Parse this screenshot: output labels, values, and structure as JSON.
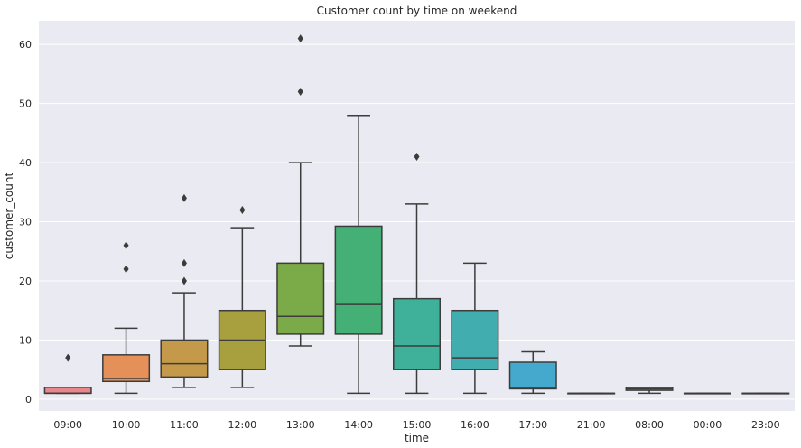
{
  "chart_data": {
    "type": "box",
    "title": "Customer count by time on weekend",
    "xlabel": "time",
    "ylabel": "customer_count",
    "ylim": [
      -2,
      64
    ],
    "yticks": [
      0,
      10,
      20,
      30,
      40,
      50,
      60
    ],
    "grid": true,
    "categories": [
      "09:00",
      "10:00",
      "11:00",
      "12:00",
      "13:00",
      "14:00",
      "15:00",
      "16:00",
      "17:00",
      "21:00",
      "08:00",
      "00:00",
      "23:00"
    ],
    "boxes": [
      {
        "category": "09:00",
        "whisker_low": 1,
        "q1": 1,
        "median": 1,
        "q3": 2,
        "whisker_high": 2,
        "outliers": [
          7
        ],
        "color": "#e8868a"
      },
      {
        "category": "10:00",
        "whisker_low": 1,
        "q1": 3,
        "median": 3.5,
        "q3": 7.5,
        "whisker_high": 12,
        "outliers": [
          22,
          26
        ],
        "color": "#e59058"
      },
      {
        "category": "11:00",
        "whisker_low": 2,
        "q1": 3.75,
        "median": 6,
        "q3": 10,
        "whisker_high": 18,
        "outliers": [
          20,
          23,
          34
        ],
        "color": "#c49a4a"
      },
      {
        "category": "12:00",
        "whisker_low": 2,
        "q1": 5,
        "median": 10,
        "q3": 15,
        "whisker_high": 29,
        "outliers": [
          32
        ],
        "color": "#a8a03f"
      },
      {
        "category": "13:00",
        "whisker_low": 9,
        "q1": 11,
        "median": 14,
        "q3": 23,
        "whisker_high": 40,
        "outliers": [
          52,
          61
        ],
        "color": "#7bab48"
      },
      {
        "category": "14:00",
        "whisker_low": 1,
        "q1": 11,
        "median": 16,
        "q3": 29.25,
        "whisker_high": 48,
        "outliers": [],
        "color": "#45b075"
      },
      {
        "category": "15:00",
        "whisker_low": 1,
        "q1": 5,
        "median": 9,
        "q3": 17,
        "whisker_high": 33,
        "outliers": [
          41
        ],
        "color": "#3fb09a"
      },
      {
        "category": "16:00",
        "whisker_low": 1,
        "q1": 5,
        "median": 7,
        "q3": 15,
        "whisker_high": 23,
        "outliers": [],
        "color": "#41adae"
      },
      {
        "category": "17:00",
        "whisker_low": 1,
        "q1": 1.75,
        "median": 2,
        "q3": 6.25,
        "whisker_high": 8,
        "outliers": [],
        "color": "#44a9cc"
      },
      {
        "category": "21:00",
        "whisker_low": 1,
        "q1": 1,
        "median": 1,
        "q3": 1,
        "whisker_high": 1,
        "outliers": [],
        "color": "#7c9fe0"
      },
      {
        "category": "08:00",
        "whisker_low": 1,
        "q1": 1.5,
        "median": 1.75,
        "q3": 2,
        "whisker_high": 2,
        "outliers": [],
        "color": "#a98fe2"
      },
      {
        "category": "00:00",
        "whisker_low": 1,
        "q1": 1,
        "median": 1,
        "q3": 1,
        "whisker_high": 1,
        "outliers": [],
        "color": "#d384d6"
      },
      {
        "category": "23:00",
        "whisker_low": 1,
        "q1": 1,
        "median": 1,
        "q3": 1,
        "whisker_high": 1,
        "outliers": [],
        "color": "#e784b8"
      }
    ],
    "colors": {
      "background": "#eaeaf2",
      "grid": "#ffffff",
      "line": "#3c3c3c"
    }
  }
}
